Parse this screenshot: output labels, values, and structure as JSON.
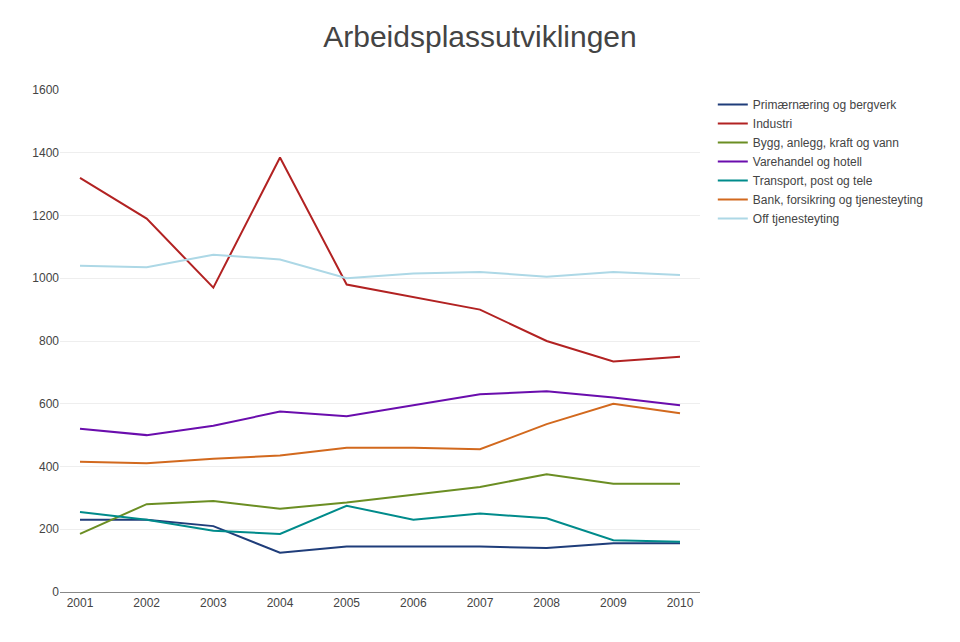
{
  "chart_data": {
    "type": "line",
    "title": "Arbeidsplassutviklingen",
    "x": [
      2001,
      2002,
      2003,
      2004,
      2005,
      2006,
      2007,
      2008,
      2009,
      2010
    ],
    "series": [
      {
        "name": "Primærnæring og bergverk",
        "color": "#1f3d7a",
        "values": [
          230,
          230,
          210,
          125,
          145,
          145,
          145,
          140,
          155,
          155
        ]
      },
      {
        "name": "Industri",
        "color": "#b22222",
        "values": [
          1320,
          1190,
          970,
          1385,
          980,
          940,
          900,
          800,
          735,
          750
        ]
      },
      {
        "name": "Bygg, anlegg, kraft og vann",
        "color": "#6b8e23",
        "values": [
          185,
          280,
          290,
          265,
          285,
          310,
          335,
          375,
          345,
          345
        ]
      },
      {
        "name": "Varehandel og hotell",
        "color": "#6a0dad",
        "values": [
          520,
          500,
          530,
          575,
          560,
          595,
          630,
          640,
          620,
          595
        ]
      },
      {
        "name": "Transport, post og tele",
        "color": "#008b8b",
        "values": [
          255,
          230,
          195,
          185,
          275,
          230,
          250,
          235,
          165,
          160
        ]
      },
      {
        "name": "Bank, forsikring og tjenesteyting",
        "color": "#d2691e",
        "values": [
          415,
          410,
          425,
          435,
          460,
          460,
          455,
          535,
          600,
          570
        ]
      },
      {
        "name": "Off tjenesteyting",
        "color": "#add8e6",
        "values": [
          1040,
          1035,
          1075,
          1060,
          1000,
          1015,
          1020,
          1005,
          1020,
          1010
        ]
      }
    ],
    "xlim": [
      2000.7,
      2010.3
    ],
    "xticks": [
      2001,
      2002,
      2003,
      2004,
      2005,
      2006,
      2007,
      2008,
      2009,
      2010
    ],
    "ylim": [
      0,
      1600
    ],
    "yticks": [
      0,
      200,
      400,
      600,
      800,
      1000,
      1200,
      1400,
      1600
    ],
    "grid": true,
    "legend": "right"
  }
}
